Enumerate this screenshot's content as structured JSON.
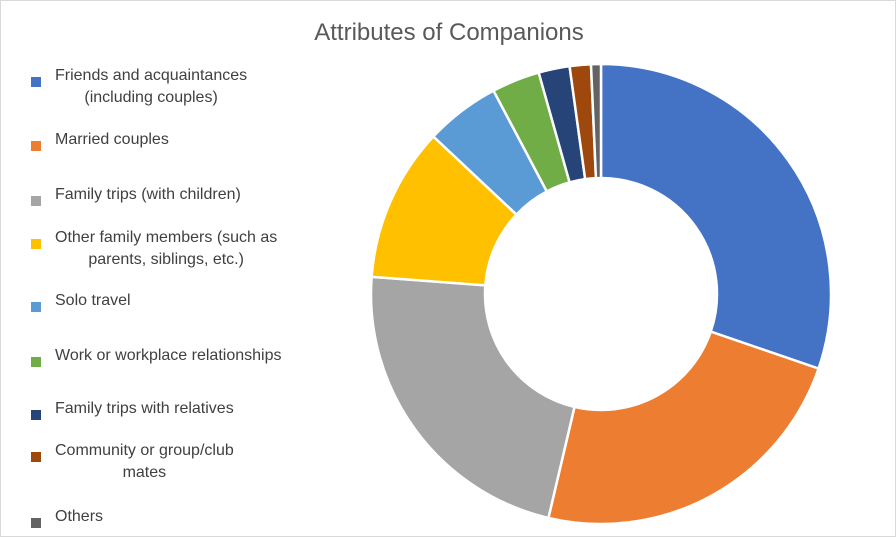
{
  "chart_data": {
    "type": "donut",
    "title": "Attributes of Companions",
    "legend_position": "left",
    "slices": [
      {
        "label": "Friends and acquaintances (including couples)",
        "value": 30.5,
        "color": "#4472C4"
      },
      {
        "label": "Married couples",
        "value": 23.6,
        "color": "#ED7D31"
      },
      {
        "label": "Family trips (with children)",
        "value": 22.7,
        "color": "#A5A5A5"
      },
      {
        "label": "Other family members (such as parents, siblings, etc.)",
        "value": 10.9,
        "color": "#FFC000"
      },
      {
        "label": "Solo travel",
        "value": 5.3,
        "color": "#5B9BD5"
      },
      {
        "label": "Work or workplace relationships",
        "value": 3.4,
        "color": "#70AD47"
      },
      {
        "label": "Family trips with relatives",
        "value": 2.2,
        "color": "#264478"
      },
      {
        "label": "Community or group/club mates",
        "value": 1.5,
        "color": "#9E480E"
      },
      {
        "label": "Others",
        "value": 0.7,
        "color": "#636363"
      }
    ]
  },
  "legend": {
    "items": [
      {
        "lines": [
          "Friends and acquaintances",
          "(including couples)"
        ]
      },
      {
        "lines": [
          "Married couples"
        ]
      },
      {
        "lines": [
          "Family trips (with children)"
        ]
      },
      {
        "lines": [
          "Other family members (such as",
          "parents, siblings, etc.)"
        ]
      },
      {
        "lines": [
          "Solo travel"
        ]
      },
      {
        "lines": [
          "Work or workplace relationships"
        ]
      },
      {
        "lines": [
          "Family trips with relatives"
        ]
      },
      {
        "lines": [
          "Community or group/club",
          "mates"
        ]
      },
      {
        "lines": [
          "Others"
        ]
      }
    ]
  }
}
